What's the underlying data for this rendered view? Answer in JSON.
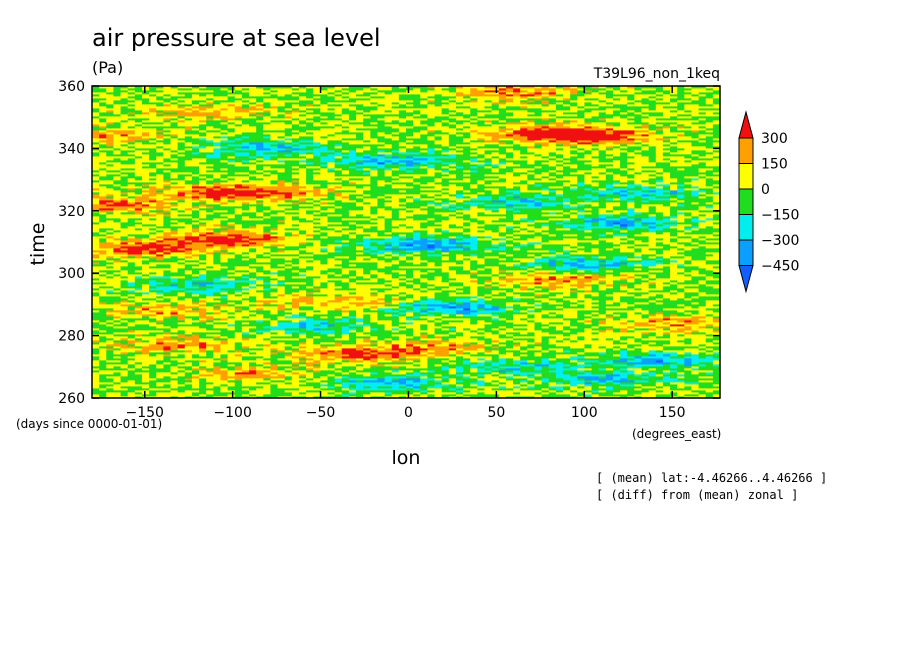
{
  "chart_data": {
    "type": "heatmap",
    "title": "air pressure at sea level",
    "units": "(Pa)",
    "experiment": "T39L96_non_1keq",
    "xlabel": "lon",
    "xunits": "(degrees_east)",
    "ylabel": "time",
    "yunits": "(days since 0000-01-01)",
    "xlim": [
      -180,
      177.2
    ],
    "ylim": [
      260,
      360
    ],
    "xticks": [
      -150,
      -100,
      -50,
      0,
      50,
      100,
      150
    ],
    "yticks": [
      260,
      280,
      300,
      320,
      340,
      360
    ],
    "notes": [
      "[ (mean) lat:-4.46266..4.46266 ]",
      "[ (diff) from (mean) zonal ]"
    ],
    "colorbar": {
      "levels": [
        -450,
        -300,
        -150,
        0,
        150,
        300
      ],
      "labels": [
        "300",
        "150",
        "0",
        "−150",
        "−300",
        "−450"
      ],
      "colors": [
        "#1060ff",
        "#0aa0ff",
        "#00eeee",
        "#20dd20",
        "#ffff00",
        "#ffa000",
        "#f01010"
      ]
    },
    "features": [
      {
        "lon": 80,
        "time": 345,
        "value": 360
      },
      {
        "lon": 105,
        "time": 344,
        "value": 400
      },
      {
        "lon": -110,
        "time": 352,
        "value": 200
      },
      {
        "lon": -170,
        "time": 344,
        "value": 220
      },
      {
        "lon": 60,
        "time": 358,
        "value": 260
      },
      {
        "lon": -80,
        "time": 340,
        "value": -300
      },
      {
        "lon": -10,
        "time": 336,
        "value": -350
      },
      {
        "lon": -110,
        "time": 326,
        "value": 320
      },
      {
        "lon": -75,
        "time": 326,
        "value": 220
      },
      {
        "lon": -165,
        "time": 322,
        "value": 300
      },
      {
        "lon": 60,
        "time": 323,
        "value": -260
      },
      {
        "lon": 130,
        "time": 326,
        "value": -250
      },
      {
        "lon": 120,
        "time": 316,
        "value": -350
      },
      {
        "lon": -150,
        "time": 308,
        "value": 380
      },
      {
        "lon": -105,
        "time": 311,
        "value": 440
      },
      {
        "lon": 10,
        "time": 309,
        "value": -400
      },
      {
        "lon": 100,
        "time": 303,
        "value": -320
      },
      {
        "lon": 85,
        "time": 298,
        "value": 250
      },
      {
        "lon": -120,
        "time": 296,
        "value": -240
      },
      {
        "lon": -40,
        "time": 291,
        "value": 200
      },
      {
        "lon": 25,
        "time": 289,
        "value": -340
      },
      {
        "lon": 150,
        "time": 284,
        "value": 220
      },
      {
        "lon": -140,
        "time": 288,
        "value": 200
      },
      {
        "lon": -50,
        "time": 283,
        "value": -220
      },
      {
        "lon": -30,
        "time": 274,
        "value": 300
      },
      {
        "lon": -130,
        "time": 277,
        "value": 220
      },
      {
        "lon": 10,
        "time": 276,
        "value": 250
      },
      {
        "lon": 140,
        "time": 272,
        "value": -320
      },
      {
        "lon": 60,
        "time": 270,
        "value": -250
      },
      {
        "lon": -90,
        "time": 268,
        "value": 200
      },
      {
        "lon": -10,
        "time": 265,
        "value": -300
      },
      {
        "lon": 110,
        "time": 266,
        "value": -280
      }
    ]
  }
}
